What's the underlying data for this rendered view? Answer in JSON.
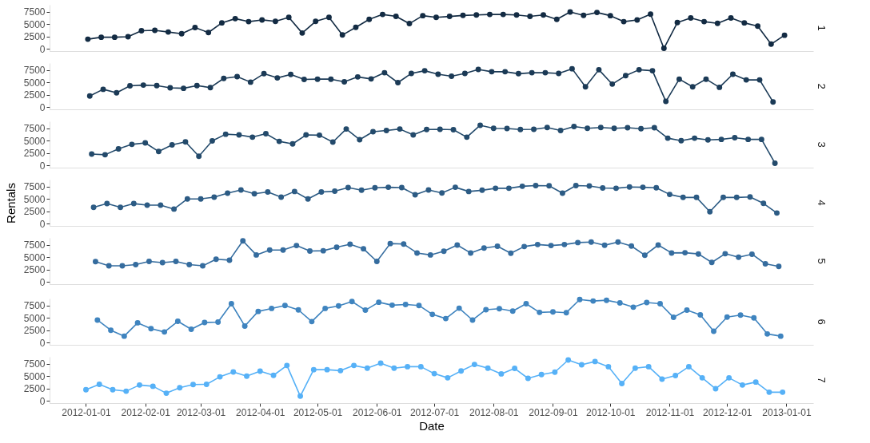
{
  "chart_data": [
    {
      "type": "line",
      "title": "1",
      "marker": "circle",
      "color": "#132b43",
      "tick_labels": "y",
      "xlim": [
        "2011-12-13",
        "2013-01-15"
      ],
      "xticks": [
        "2012-01-01",
        "2012-02-01",
        "2012-03-01",
        "2012-04-01",
        "2012-05-01",
        "2012-06-01",
        "2012-07-01",
        "2012-08-01",
        "2012-09-01",
        "2012-10-01",
        "2012-11-01",
        "2012-12-01",
        "2013-01-01"
      ],
      "ylim": [
        -450,
        8900
      ],
      "yticks": [
        0,
        2500,
        5000,
        7500
      ],
      "x": [
        "2012-01-02",
        "2012-01-09",
        "2012-01-16",
        "2012-01-23",
        "2012-01-30",
        "2012-02-06",
        "2012-02-13",
        "2012-02-20",
        "2012-02-27",
        "2012-03-05",
        "2012-03-12",
        "2012-03-19",
        "2012-03-26",
        "2012-04-02",
        "2012-04-09",
        "2012-04-16",
        "2012-04-23",
        "2012-04-30",
        "2012-05-07",
        "2012-05-14",
        "2012-05-21",
        "2012-05-28",
        "2012-06-04",
        "2012-06-11",
        "2012-06-18",
        "2012-06-25",
        "2012-07-02",
        "2012-07-09",
        "2012-07-16",
        "2012-07-23",
        "2012-07-30",
        "2012-08-06",
        "2012-08-13",
        "2012-08-20",
        "2012-08-27",
        "2012-09-03",
        "2012-09-10",
        "2012-09-17",
        "2012-09-24",
        "2012-10-01",
        "2012-10-08",
        "2012-10-15",
        "2012-10-22",
        "2012-10-29",
        "2012-11-05",
        "2012-11-12",
        "2012-11-19",
        "2012-11-26",
        "2012-12-03",
        "2012-12-10",
        "2012-12-17",
        "2012-12-24",
        "2012-12-31"
      ],
      "values": [
        1950,
        2350,
        2350,
        2450,
        3650,
        3750,
        3400,
        3050,
        4300,
        3300,
        5250,
        6100,
        5500,
        5850,
        5550,
        6350,
        3200,
        5550,
        6350,
        2800,
        4350,
        5950,
        6950,
        6550,
        5100,
        6700,
        6350,
        6550,
        6750,
        6850,
        6950,
        6950,
        6850,
        6550,
        6850,
        5950,
        7450,
        6750,
        7350,
        6700,
        5500,
        5850,
        7000,
        100,
        5300,
        6250,
        5500,
        5150,
        6250,
        5250,
        4600,
        950,
        2750
      ]
    },
    {
      "type": "line",
      "title": "2",
      "marker": "circle",
      "color": "#1b3a56",
      "tick_labels": "y",
      "xlim": [
        "2011-12-13",
        "2013-01-15"
      ],
      "xticks": [
        "2012-01-01",
        "2012-02-01",
        "2012-03-01",
        "2012-04-01",
        "2012-05-01",
        "2012-06-01",
        "2012-07-01",
        "2012-08-01",
        "2012-09-01",
        "2012-10-01",
        "2012-11-01",
        "2012-12-01",
        "2013-01-01"
      ],
      "ylim": [
        -450,
        8900
      ],
      "yticks": [
        0,
        2500,
        5000,
        7500
      ],
      "x": [
        "2012-01-03",
        "2012-01-10",
        "2012-01-17",
        "2012-01-24",
        "2012-01-31",
        "2012-02-07",
        "2012-02-14",
        "2012-02-21",
        "2012-02-28",
        "2012-03-06",
        "2012-03-13",
        "2012-03-20",
        "2012-03-27",
        "2012-04-03",
        "2012-04-10",
        "2012-04-17",
        "2012-04-24",
        "2012-05-01",
        "2012-05-08",
        "2012-05-15",
        "2012-05-22",
        "2012-05-29",
        "2012-06-05",
        "2012-06-12",
        "2012-06-19",
        "2012-06-26",
        "2012-07-03",
        "2012-07-10",
        "2012-07-17",
        "2012-07-24",
        "2012-07-31",
        "2012-08-07",
        "2012-08-14",
        "2012-08-21",
        "2012-08-28",
        "2012-09-04",
        "2012-09-11",
        "2012-09-18",
        "2012-09-25",
        "2012-10-02",
        "2012-10-09",
        "2012-10-16",
        "2012-10-23",
        "2012-10-30",
        "2012-11-06",
        "2012-11-13",
        "2012-11-20",
        "2012-11-27",
        "2012-12-04",
        "2012-12-11",
        "2012-12-18",
        "2012-12-25"
      ],
      "values": [
        2250,
        3600,
        2900,
        4300,
        4450,
        4350,
        3900,
        3800,
        4350,
        3950,
        5800,
        6150,
        5050,
        6750,
        5900,
        6600,
        5600,
        5650,
        5650,
        5100,
        6100,
        5700,
        6950,
        4950,
        6800,
        7350,
        6650,
        6250,
        6800,
        7600,
        7150,
        7150,
        6750,
        6950,
        6950,
        6800,
        7750,
        4100,
        7550,
        4650,
        6350,
        7550,
        7350,
        1150,
        5650,
        4100,
        5650,
        4000,
        6650,
        5500,
        5500,
        1050
      ]
    },
    {
      "type": "line",
      "title": "3",
      "marker": "circle",
      "color": "#234a6b",
      "tick_labels": "y",
      "xlim": [
        "2011-12-13",
        "2013-01-15"
      ],
      "xticks": [
        "2012-01-01",
        "2012-02-01",
        "2012-03-01",
        "2012-04-01",
        "2012-05-01",
        "2012-06-01",
        "2012-07-01",
        "2012-08-01",
        "2012-09-01",
        "2012-10-01",
        "2012-11-01",
        "2012-12-01",
        "2013-01-01"
      ],
      "ylim": [
        -450,
        8900
      ],
      "yticks": [
        0,
        2500,
        5000,
        7500
      ],
      "x": [
        "2012-01-04",
        "2012-01-11",
        "2012-01-18",
        "2012-01-25",
        "2012-02-01",
        "2012-02-08",
        "2012-02-15",
        "2012-02-22",
        "2012-02-29",
        "2012-03-07",
        "2012-03-14",
        "2012-03-21",
        "2012-03-28",
        "2012-04-04",
        "2012-04-11",
        "2012-04-18",
        "2012-04-25",
        "2012-05-02",
        "2012-05-09",
        "2012-05-16",
        "2012-05-23",
        "2012-05-30",
        "2012-06-06",
        "2012-06-13",
        "2012-06-20",
        "2012-06-27",
        "2012-07-04",
        "2012-07-11",
        "2012-07-18",
        "2012-07-25",
        "2012-08-01",
        "2012-08-08",
        "2012-08-15",
        "2012-08-22",
        "2012-08-29",
        "2012-09-05",
        "2012-09-12",
        "2012-09-19",
        "2012-09-26",
        "2012-10-03",
        "2012-10-10",
        "2012-10-17",
        "2012-10-24",
        "2012-10-31",
        "2012-11-07",
        "2012-11-14",
        "2012-11-21",
        "2012-11-28",
        "2012-12-05",
        "2012-12-12",
        "2012-12-19",
        "2012-12-26"
      ],
      "values": [
        2300,
        2150,
        3350,
        4250,
        4550,
        2800,
        4150,
        4750,
        1850,
        4950,
        6300,
        6150,
        5700,
        6400,
        4850,
        4350,
        6150,
        6100,
        4700,
        7350,
        5200,
        6800,
        7050,
        7350,
        6150,
        7250,
        7300,
        7200,
        5700,
        8100,
        7500,
        7450,
        7250,
        7300,
        7650,
        7050,
        7850,
        7500,
        7650,
        7500,
        7600,
        7400,
        7600,
        5500,
        5000,
        5500,
        5150,
        5250,
        5600,
        5250,
        5250,
        450
      ]
    },
    {
      "type": "line",
      "title": "4",
      "ylabel": "Rentals",
      "marker": "circle",
      "color": "#2c5b84",
      "tick_labels": "y",
      "xlim": [
        "2011-12-13",
        "2013-01-15"
      ],
      "xticks": [
        "2012-01-01",
        "2012-02-01",
        "2012-03-01",
        "2012-04-01",
        "2012-05-01",
        "2012-06-01",
        "2012-07-01",
        "2012-08-01",
        "2012-09-01",
        "2012-10-01",
        "2012-11-01",
        "2012-12-01",
        "2013-01-01"
      ],
      "ylim": [
        -450,
        8900
      ],
      "yticks": [
        0,
        2500,
        5000,
        7500
      ],
      "x": [
        "2012-01-05",
        "2012-01-12",
        "2012-01-19",
        "2012-01-26",
        "2012-02-02",
        "2012-02-09",
        "2012-02-16",
        "2012-02-23",
        "2012-03-01",
        "2012-03-08",
        "2012-03-15",
        "2012-03-22",
        "2012-03-29",
        "2012-04-05",
        "2012-04-12",
        "2012-04-19",
        "2012-04-26",
        "2012-05-03",
        "2012-05-10",
        "2012-05-17",
        "2012-05-24",
        "2012-05-31",
        "2012-06-07",
        "2012-06-14",
        "2012-06-21",
        "2012-06-28",
        "2012-07-05",
        "2012-07-12",
        "2012-07-19",
        "2012-07-26",
        "2012-08-02",
        "2012-08-09",
        "2012-08-16",
        "2012-08-23",
        "2012-08-30",
        "2012-09-06",
        "2012-09-13",
        "2012-09-20",
        "2012-09-27",
        "2012-10-04",
        "2012-10-11",
        "2012-10-18",
        "2012-10-25",
        "2012-11-01",
        "2012-11-08",
        "2012-11-15",
        "2012-11-22",
        "2012-11-29",
        "2012-12-06",
        "2012-12-13",
        "2012-12-20",
        "2012-12-27"
      ],
      "values": [
        3300,
        4050,
        3300,
        4050,
        3750,
        3750,
        2950,
        5000,
        5000,
        5350,
        6150,
        6800,
        6050,
        6400,
        5350,
        6500,
        5000,
        6400,
        6550,
        7300,
        6750,
        7250,
        7350,
        7300,
        5850,
        6800,
        6200,
        7350,
        6500,
        6750,
        7150,
        7150,
        7550,
        7700,
        7650,
        6150,
        7700,
        7600,
        7200,
        7150,
        7400,
        7350,
        7250,
        5900,
        5300,
        5300,
        2400,
        5300,
        5300,
        5400,
        4100,
        2150
      ]
    },
    {
      "type": "line",
      "title": "5",
      "marker": "circle",
      "color": "#356c9e",
      "tick_labels": "y",
      "xlim": [
        "2011-12-13",
        "2013-01-15"
      ],
      "xticks": [
        "2012-01-01",
        "2012-02-01",
        "2012-03-01",
        "2012-04-01",
        "2012-05-01",
        "2012-06-01",
        "2012-07-01",
        "2012-08-01",
        "2012-09-01",
        "2012-10-01",
        "2012-11-01",
        "2012-12-01",
        "2013-01-01"
      ],
      "ylim": [
        -450,
        8900
      ],
      "yticks": [
        0,
        2500,
        5000,
        7500
      ],
      "x": [
        "2012-01-06",
        "2012-01-13",
        "2012-01-20",
        "2012-01-27",
        "2012-02-03",
        "2012-02-10",
        "2012-02-17",
        "2012-02-24",
        "2012-03-02",
        "2012-03-09",
        "2012-03-16",
        "2012-03-23",
        "2012-03-30",
        "2012-04-06",
        "2012-04-13",
        "2012-04-20",
        "2012-04-27",
        "2012-05-04",
        "2012-05-11",
        "2012-05-18",
        "2012-05-25",
        "2012-06-01",
        "2012-06-08",
        "2012-06-15",
        "2012-06-22",
        "2012-06-29",
        "2012-07-06",
        "2012-07-13",
        "2012-07-20",
        "2012-07-27",
        "2012-08-03",
        "2012-08-10",
        "2012-08-17",
        "2012-08-24",
        "2012-08-31",
        "2012-09-07",
        "2012-09-14",
        "2012-09-21",
        "2012-09-28",
        "2012-10-05",
        "2012-10-12",
        "2012-10-19",
        "2012-10-26",
        "2012-11-02",
        "2012-11-09",
        "2012-11-16",
        "2012-11-23",
        "2012-11-30",
        "2012-12-07",
        "2012-12-14",
        "2012-12-21",
        "2012-12-28"
      ],
      "values": [
        4100,
        3250,
        3250,
        3500,
        4150,
        3900,
        4150,
        3500,
        3250,
        4600,
        4400,
        8300,
        5450,
        6450,
        6450,
        7350,
        6250,
        6300,
        7000,
        7600,
        6700,
        4150,
        7750,
        7650,
        5850,
        5450,
        6200,
        7450,
        5850,
        6850,
        7200,
        5800,
        7150,
        7550,
        7350,
        7550,
        7950,
        8050,
        7400,
        8050,
        7250,
        5400,
        7450,
        5850,
        5900,
        5650,
        3950,
        5700,
        5000,
        5600,
        3650,
        3150
      ]
    },
    {
      "type": "line",
      "title": "6",
      "marker": "circle",
      "color": "#3f84bf",
      "tick_labels": "y",
      "xlim": [
        "2011-12-13",
        "2013-01-15"
      ],
      "xticks": [
        "2012-01-01",
        "2012-02-01",
        "2012-03-01",
        "2012-04-01",
        "2012-05-01",
        "2012-06-01",
        "2012-07-01",
        "2012-08-01",
        "2012-09-01",
        "2012-10-01",
        "2012-11-01",
        "2012-12-01",
        "2013-01-01"
      ],
      "ylim": [
        -450,
        8900
      ],
      "yticks": [
        0,
        2500,
        5000,
        7500
      ],
      "x": [
        "2012-01-07",
        "2012-01-14",
        "2012-01-21",
        "2012-01-28",
        "2012-02-04",
        "2012-02-11",
        "2012-02-18",
        "2012-02-25",
        "2012-03-03",
        "2012-03-10",
        "2012-03-17",
        "2012-03-24",
        "2012-03-31",
        "2012-04-07",
        "2012-04-14",
        "2012-04-21",
        "2012-04-28",
        "2012-05-05",
        "2012-05-12",
        "2012-05-19",
        "2012-05-26",
        "2012-06-02",
        "2012-06-09",
        "2012-06-16",
        "2012-06-23",
        "2012-06-30",
        "2012-07-07",
        "2012-07-14",
        "2012-07-21",
        "2012-07-28",
        "2012-08-04",
        "2012-08-11",
        "2012-08-18",
        "2012-08-25",
        "2012-09-01",
        "2012-09-08",
        "2012-09-15",
        "2012-09-22",
        "2012-09-29",
        "2012-10-06",
        "2012-10-13",
        "2012-10-20",
        "2012-10-27",
        "2012-11-03",
        "2012-11-10",
        "2012-11-17",
        "2012-11-24",
        "2012-12-01",
        "2012-12-08",
        "2012-12-15",
        "2012-12-22",
        "2012-12-29"
      ],
      "values": [
        4550,
        2500,
        1300,
        4000,
        2800,
        2150,
        4300,
        2700,
        4050,
        4150,
        7850,
        3350,
        6300,
        6900,
        7500,
        6600,
        4250,
        6900,
        7400,
        8300,
        6550,
        8150,
        7550,
        7700,
        7500,
        5700,
        4850,
        6950,
        4550,
        6650,
        6850,
        6350,
        7850,
        6100,
        6200,
        6050,
        8700,
        8400,
        8550,
        8000,
        7150,
        8100,
        7850,
        5100,
        6550,
        5600,
        2300,
        5150,
        5550,
        5000,
        1750,
        1300
      ]
    },
    {
      "type": "line",
      "title": "7",
      "xlabel": "Date",
      "marker": "circle",
      "color": "#56b1f7",
      "xlim": [
        "2011-12-13",
        "2013-01-15"
      ],
      "ylim": [
        -450,
        8900
      ],
      "xticks": [
        "2012-01-01",
        "2012-02-01",
        "2012-03-01",
        "2012-04-01",
        "2012-05-01",
        "2012-06-01",
        "2012-07-01",
        "2012-08-01",
        "2012-09-01",
        "2012-10-01",
        "2012-11-01",
        "2012-12-01",
        "2013-01-01"
      ],
      "yticks": [
        0,
        2500,
        5000,
        7500
      ],
      "x": [
        "2012-01-01",
        "2012-01-08",
        "2012-01-15",
        "2012-01-22",
        "2012-01-29",
        "2012-02-05",
        "2012-02-12",
        "2012-02-19",
        "2012-02-26",
        "2012-03-04",
        "2012-03-11",
        "2012-03-18",
        "2012-03-25",
        "2012-04-01",
        "2012-04-08",
        "2012-04-15",
        "2012-04-22",
        "2012-04-29",
        "2012-05-06",
        "2012-05-13",
        "2012-05-20",
        "2012-05-27",
        "2012-06-03",
        "2012-06-10",
        "2012-06-17",
        "2012-06-24",
        "2012-07-01",
        "2012-07-08",
        "2012-07-15",
        "2012-07-22",
        "2012-07-29",
        "2012-08-05",
        "2012-08-12",
        "2012-08-19",
        "2012-08-26",
        "2012-09-02",
        "2012-09-09",
        "2012-09-16",
        "2012-09-23",
        "2012-09-30",
        "2012-10-07",
        "2012-10-14",
        "2012-10-21",
        "2012-10-28",
        "2012-11-04",
        "2012-11-11",
        "2012-11-18",
        "2012-11-25",
        "2012-12-02",
        "2012-12-09",
        "2012-12-16",
        "2012-12-23",
        "2012-12-30"
      ],
      "values": [
        2250,
        3350,
        2250,
        1950,
        3200,
        2950,
        1550,
        2650,
        3300,
        3350,
        4850,
        5850,
        5000,
        6000,
        5150,
        7150,
        950,
        6300,
        6300,
        6100,
        7150,
        6600,
        7600,
        6600,
        6900,
        6900,
        5500,
        4650,
        6050,
        7350,
        6600,
        5450,
        6550,
        4550,
        5300,
        5800,
        8250,
        7300,
        7950,
        6900,
        3500,
        6600,
        6900,
        4400,
        5100,
        6900,
        4650,
        2450,
        4650,
        3200,
        3800,
        1750,
        1750
      ]
    }
  ]
}
